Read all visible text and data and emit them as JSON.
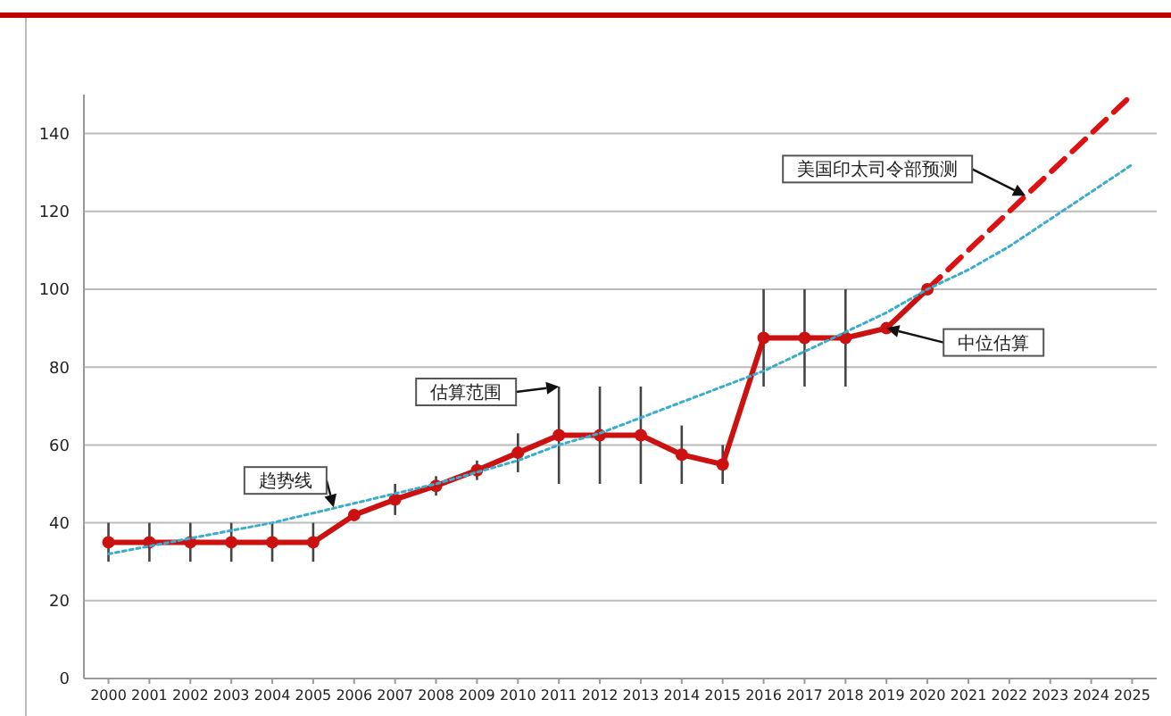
{
  "chart_data": {
    "type": "line",
    "x": [
      2000,
      2001,
      2002,
      2003,
      2004,
      2005,
      2006,
      2007,
      2008,
      2009,
      2010,
      2011,
      2012,
      2013,
      2014,
      2015,
      2016,
      2017,
      2018,
      2019,
      2020
    ],
    "series": [
      {
        "color": "#cc1111",
        "marker": "circle",
        "line_style": "solid",
        "values": [
          35,
          35,
          35,
          35,
          35,
          35,
          42,
          46,
          49.5,
          53.5,
          58,
          62.5,
          62.5,
          62.5,
          57.5,
          55,
          87.5,
          87.5,
          87.5,
          90,
          100
        ],
        "errors": [
          [
            30,
            40
          ],
          [
            30,
            40
          ],
          [
            30,
            40
          ],
          [
            30,
            40
          ],
          [
            30,
            40
          ],
          [
            30,
            40
          ],
          null,
          [
            42,
            50
          ],
          [
            47,
            52
          ],
          [
            51,
            56
          ],
          [
            53,
            63
          ],
          [
            50,
            75
          ],
          [
            50,
            75
          ],
          [
            50,
            75
          ],
          [
            50,
            65
          ],
          [
            50,
            60
          ],
          [
            75,
            100
          ],
          [
            75,
            100
          ],
          [
            75,
            100
          ],
          null,
          null
        ]
      },
      {
        "color": "#dd1111",
        "marker": "none",
        "line_style": "dashed",
        "x": [
          2020,
          2021,
          2022,
          2023,
          2024,
          2025
        ],
        "values": [
          100,
          110,
          120,
          130,
          140,
          150
        ]
      },
      {
        "color": "#3aaccc",
        "marker": "none",
        "line_style": "dotted",
        "x": [
          2000,
          2001,
          2002,
          2003,
          2004,
          2005,
          2006,
          2007,
          2008,
          2009,
          2010,
          2011,
          2012,
          2013,
          2014,
          2015,
          2016,
          2017,
          2018,
          2019,
          2020,
          2021,
          2022,
          2023,
          2024,
          2025
        ],
        "values": [
          32,
          34,
          36,
          38,
          40,
          42.5,
          45,
          47.5,
          50,
          53,
          56,
          60,
          63,
          67,
          71,
          75,
          79,
          84,
          89,
          94,
          100,
          105,
          111,
          118,
          125,
          132
        ]
      }
    ],
    "xlim": [
      1999.4,
      2025.6
    ],
    "xticks": [
      2000,
      2001,
      2002,
      2003,
      2004,
      2005,
      2006,
      2007,
      2008,
      2009,
      2010,
      2011,
      2012,
      2013,
      2014,
      2015,
      2016,
      2017,
      2018,
      2019,
      2020,
      2021,
      2022,
      2023,
      2024,
      2025
    ],
    "ylim": [
      0,
      150
    ],
    "yticks": [
      0,
      20,
      40,
      60,
      80,
      100,
      120,
      140
    ],
    "grid": "y",
    "annotations": [
      {
        "text": "估算范围",
        "x": 2011,
        "y": 75
      },
      {
        "text": "趋势线",
        "x": 2005.5,
        "y": 44
      },
      {
        "text": "美国印太司令部预测",
        "x": 2022.4,
        "y": 124
      },
      {
        "text": "中位估算",
        "x": 2019,
        "y": 90
      }
    ]
  }
}
